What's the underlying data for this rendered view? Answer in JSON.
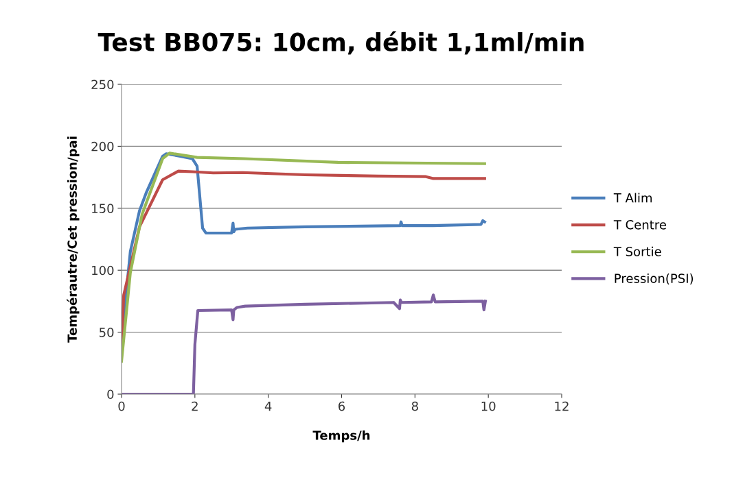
{
  "chart_data": {
    "type": "line",
    "title": "Test BB075: 10cm, débit 1,1ml/min",
    "xlabel": "Temps/h",
    "ylabel": "Tempérautre/Cet pression/pai",
    "xlim": [
      0,
      12
    ],
    "xticks": [
      0,
      2,
      4,
      6,
      8,
      10,
      12
    ],
    "ylim": [
      0,
      250
    ],
    "yticks": [
      0,
      50,
      100,
      150,
      200,
      250
    ],
    "grid": "y",
    "legend": "right",
    "marker": "none",
    "line_style": "solid",
    "series": [
      {
        "name": "T Alim",
        "color": "#4a7ebb",
        "x": [
          0,
          0.06,
          0.24,
          0.49,
          0.68,
          1.12,
          1.22,
          1.6,
          1.93,
          2.06,
          2.21,
          2.3,
          3.0,
          3.04,
          3.06,
          3.1,
          3.43,
          5,
          7.6,
          7.62,
          7.65,
          8.5,
          9.8,
          9.85,
          9.9
        ],
        "values": [
          35,
          62,
          115,
          148,
          163,
          192,
          194,
          192,
          190,
          184,
          134,
          130,
          130,
          138,
          131,
          133,
          134,
          135,
          136,
          139,
          136,
          136,
          137,
          140,
          139
        ]
      },
      {
        "name": "T Centre",
        "color": "#be4b48",
        "x": [
          0,
          0.06,
          0.49,
          1.12,
          1.55,
          1.93,
          2.5,
          3.3,
          5,
          7,
          8.3,
          8.5,
          9.9
        ],
        "values": [
          40,
          80,
          135,
          173,
          180,
          179.5,
          178.5,
          178.8,
          177,
          176,
          175.5,
          174,
          174
        ]
      },
      {
        "name": "T Sortie",
        "color": "#98b954",
        "x": [
          0,
          0.24,
          0.56,
          1.12,
          1.31,
          2.06,
          3.37,
          5.9,
          9.9
        ],
        "values": [
          26.5,
          98,
          145,
          190,
          194.5,
          191,
          190,
          187,
          186
        ]
      },
      {
        "name": "Pression(PSI)",
        "color": "#7d60a0",
        "x": [
          0,
          1.96,
          2.0,
          2.08,
          3.0,
          3.04,
          3.06,
          3.15,
          3.37,
          5,
          7.42,
          7.58,
          7.6,
          7.63,
          8.45,
          8.5,
          8.55,
          9.85,
          9.88,
          9.92
        ],
        "values": [
          0,
          0,
          40,
          67.5,
          68,
          60,
          68,
          70,
          71,
          72.5,
          74,
          69,
          76,
          74,
          74.5,
          80,
          74.5,
          75,
          68,
          75
        ]
      }
    ]
  }
}
